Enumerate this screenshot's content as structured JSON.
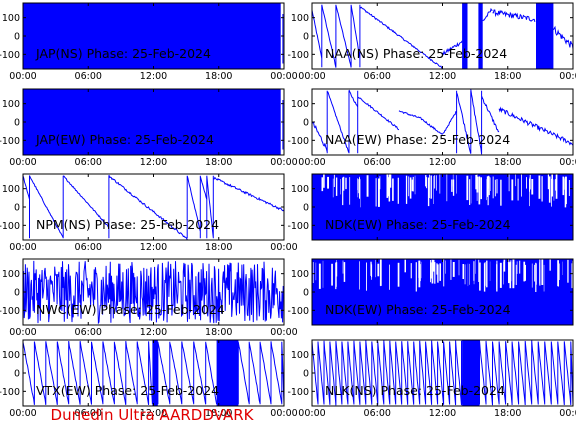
{
  "footer": "Dunedin Ultra AARDDVARK",
  "colors": {
    "trace": "#0000ff",
    "footer": "#e00000",
    "axis": "#000000"
  },
  "chart_data": [
    {
      "id": "jap-ns",
      "title": "JAP(NS) Phase: 25-Feb-2024",
      "type": "line",
      "pattern": "solid",
      "yticks": [
        "100",
        "0",
        "-100"
      ],
      "xticks": [
        "00:00",
        "06:00",
        "12:00",
        "18:00",
        "00:00"
      ],
      "ylim": [
        -180,
        180
      ],
      "xlim_hours": [
        0,
        24
      ],
      "x_tick_labels_shown": true
    },
    {
      "id": "naa-ns",
      "title": "NAA(NS) Phase: 25-Feb-2024",
      "type": "line",
      "pattern": "naa_ns",
      "yticks": [
        "100",
        "0",
        "-100"
      ],
      "xticks": [
        "00:00",
        "06:00",
        "12:00",
        "18:00",
        "00:00"
      ],
      "ylim": [
        -180,
        180
      ],
      "xlim_hours": [
        0,
        24
      ],
      "x_tick_labels_shown": true
    },
    {
      "id": "jap-ew",
      "title": "JAP(EW) Phase: 25-Feb-2024",
      "type": "line",
      "pattern": "solid",
      "yticks": [
        "100",
        "0",
        "-100"
      ],
      "xticks": [
        "00:00",
        "06:00",
        "12:00",
        "18:00",
        "00:00"
      ],
      "ylim": [
        -180,
        180
      ],
      "xlim_hours": [
        0,
        24
      ],
      "x_tick_labels_shown": true
    },
    {
      "id": "naa-ew",
      "title": "NAA(EW) Phase: 25-Feb-2024",
      "type": "line",
      "pattern": "naa_ew",
      "yticks": [
        "100",
        "0",
        "-100"
      ],
      "xticks": [
        "00:00",
        "06:00",
        "12:00",
        "18:00",
        "00:00"
      ],
      "ylim": [
        -180,
        180
      ],
      "xlim_hours": [
        0,
        24
      ],
      "x_tick_labels_shown": true
    },
    {
      "id": "npm-ns",
      "title": "NPM(NS) Phase: 25-Feb-2024",
      "type": "line",
      "pattern": "npm",
      "yticks": [
        "100",
        "0",
        "-100"
      ],
      "xticks": [
        "00:00",
        "06:00",
        "12:00",
        "18:00",
        "00:00"
      ],
      "ylim": [
        -180,
        180
      ],
      "xlim_hours": [
        0,
        24
      ],
      "x_tick_labels_shown": true
    },
    {
      "id": "ndk-ew-1",
      "title": "NDK(EW) Phase: 25-Feb-2024",
      "type": "line",
      "pattern": "dense_gaps",
      "yticks": [
        "100",
        "0",
        "-100"
      ],
      "xticks": [
        "00:00",
        "06:00",
        "12:00",
        "18:00",
        "00:00"
      ],
      "ylim": [
        -180,
        180
      ],
      "xlim_hours": [
        0,
        24
      ],
      "x_tick_labels_shown": false
    },
    {
      "id": "nwc-ew",
      "title": "NWC(EW) Phase: 25-Feb-2024",
      "type": "line",
      "pattern": "noise",
      "yticks": [
        "100",
        "0",
        "-100"
      ],
      "xticks": [
        "00:00",
        "06:00",
        "12:00",
        "18:00",
        "00:00"
      ],
      "ylim": [
        -180,
        180
      ],
      "xlim_hours": [
        0,
        24
      ],
      "x_tick_labels_shown": true
    },
    {
      "id": "ndk-ew-2",
      "title": "NDK(EW) Phase: 25-Feb-2024",
      "type": "line",
      "pattern": "dense_gaps",
      "yticks": [
        "100",
        "0",
        "-100"
      ],
      "xticks": [
        "00:00",
        "06:00",
        "12:00",
        "18:00",
        "00:00"
      ],
      "ylim": [
        -180,
        180
      ],
      "xlim_hours": [
        0,
        24
      ],
      "x_tick_labels_shown": false
    },
    {
      "id": "vtx-ew",
      "title": "VTX(EW) Phase: 25-Feb-2024",
      "type": "line",
      "pattern": "vtx",
      "yticks": [
        "100",
        "0",
        "-100"
      ],
      "xticks": [
        "00:00",
        "06:00",
        "12:00",
        "18:00",
        "00:00"
      ],
      "ylim": [
        -180,
        180
      ],
      "xlim_hours": [
        0,
        24
      ],
      "x_tick_labels_shown": true
    },
    {
      "id": "nlk-ns",
      "title": "NLK(NS) Phase: 25-Feb-2024",
      "type": "line",
      "pattern": "nlk",
      "yticks": [
        "100",
        "0",
        "-100"
      ],
      "xticks": [
        "00:00",
        "06:00",
        "12:00",
        "18:00",
        "00:00"
      ],
      "ylim": [
        -180,
        180
      ],
      "xlim_hours": [
        0,
        24
      ],
      "x_tick_labels_shown": true
    }
  ]
}
